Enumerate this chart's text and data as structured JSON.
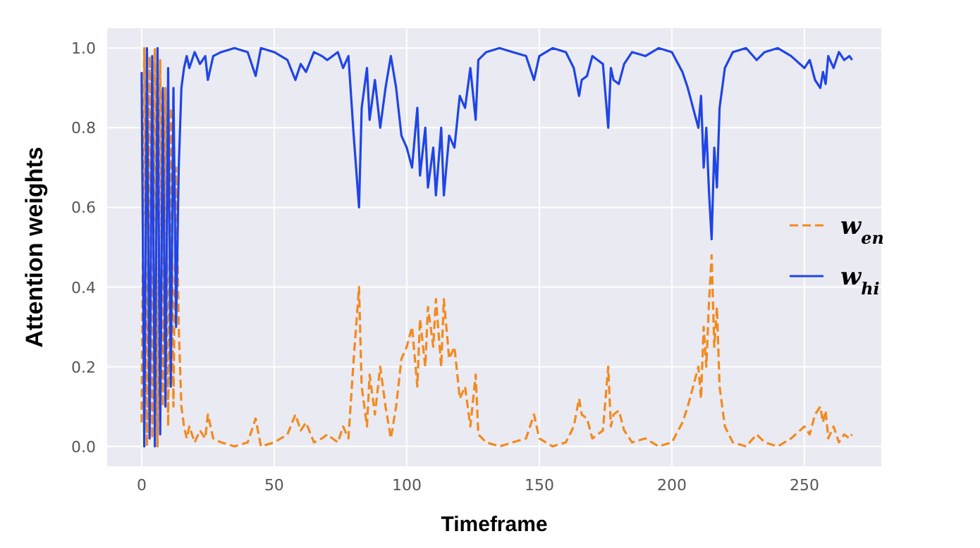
{
  "chart_data": {
    "type": "line",
    "xlabel": "Timeframe",
    "ylabel": "Attention weights",
    "x": [
      0,
      1,
      2,
      3,
      4,
      5,
      6,
      7,
      8,
      9,
      10,
      11,
      12,
      13,
      14,
      15,
      16,
      17,
      18,
      20,
      22,
      24,
      25,
      27,
      30,
      35,
      40,
      43,
      45,
      50,
      55,
      58,
      60,
      62,
      65,
      68,
      70,
      74,
      76,
      78,
      80,
      82,
      83,
      84,
      85,
      86,
      88,
      90,
      92,
      94,
      96,
      98,
      100,
      102,
      104,
      105,
      107,
      108,
      110,
      111,
      113,
      114,
      116,
      118,
      120,
      122,
      124,
      126,
      127,
      130,
      135,
      140,
      145,
      148,
      150,
      155,
      160,
      163,
      165,
      166,
      168,
      170,
      172,
      174,
      176,
      177,
      178,
      180,
      182,
      185,
      190,
      195,
      200,
      204,
      206,
      208,
      210,
      211,
      212,
      213,
      214,
      215,
      216,
      217,
      218,
      220,
      223,
      228,
      232,
      235,
      240,
      245,
      250,
      252,
      254,
      256,
      257,
      258,
      259,
      261,
      263,
      265,
      267,
      268
    ],
    "series": [
      {
        "name": "w$_{en}$",
        "color": "#f28a1e",
        "line_style": "dashed",
        "values": [
          0.06,
          1.0,
          0.0,
          0.98,
          0.02,
          1.0,
          0.0,
          0.97,
          0.1,
          0.9,
          0.05,
          0.85,
          0.1,
          0.7,
          0.3,
          0.1,
          0.05,
          0.02,
          0.05,
          0.01,
          0.04,
          0.02,
          0.08,
          0.02,
          0.01,
          0.0,
          0.01,
          0.07,
          0.0,
          0.01,
          0.03,
          0.08,
          0.04,
          0.06,
          0.01,
          0.02,
          0.03,
          0.01,
          0.05,
          0.02,
          0.22,
          0.4,
          0.15,
          0.1,
          0.05,
          0.18,
          0.08,
          0.2,
          0.1,
          0.02,
          0.1,
          0.22,
          0.25,
          0.3,
          0.15,
          0.32,
          0.2,
          0.35,
          0.25,
          0.37,
          0.2,
          0.37,
          0.22,
          0.25,
          0.12,
          0.15,
          0.05,
          0.18,
          0.03,
          0.01,
          0.0,
          0.01,
          0.02,
          0.08,
          0.02,
          0.0,
          0.01,
          0.05,
          0.12,
          0.08,
          0.07,
          0.02,
          0.03,
          0.04,
          0.2,
          0.05,
          0.08,
          0.09,
          0.04,
          0.01,
          0.02,
          0.0,
          0.01,
          0.06,
          0.1,
          0.15,
          0.2,
          0.12,
          0.3,
          0.2,
          0.36,
          0.48,
          0.25,
          0.35,
          0.15,
          0.05,
          0.01,
          0.0,
          0.03,
          0.01,
          0.0,
          0.02,
          0.05,
          0.03,
          0.08,
          0.1,
          0.06,
          0.09,
          0.02,
          0.05,
          0.01,
          0.03,
          0.02,
          0.03
        ]
      },
      {
        "name": "w$_{hi}$",
        "color": "#1f45e6",
        "line_style": "solid",
        "values": [
          0.94,
          0.0,
          1.0,
          0.02,
          0.98,
          0.0,
          1.0,
          0.03,
          0.9,
          0.1,
          0.95,
          0.15,
          0.9,
          0.3,
          0.7,
          0.9,
          0.95,
          0.98,
          0.95,
          0.99,
          0.96,
          0.98,
          0.92,
          0.98,
          0.99,
          1.0,
          0.99,
          0.93,
          1.0,
          0.99,
          0.97,
          0.92,
          0.96,
          0.94,
          0.99,
          0.98,
          0.97,
          0.99,
          0.95,
          0.98,
          0.78,
          0.6,
          0.85,
          0.9,
          0.95,
          0.82,
          0.92,
          0.8,
          0.9,
          0.98,
          0.9,
          0.78,
          0.75,
          0.7,
          0.85,
          0.68,
          0.8,
          0.65,
          0.75,
          0.63,
          0.8,
          0.63,
          0.78,
          0.75,
          0.88,
          0.85,
          0.95,
          0.82,
          0.97,
          0.99,
          1.0,
          0.99,
          0.98,
          0.92,
          0.98,
          1.0,
          0.99,
          0.95,
          0.88,
          0.92,
          0.93,
          0.98,
          0.97,
          0.96,
          0.8,
          0.95,
          0.92,
          0.91,
          0.96,
          0.99,
          0.98,
          1.0,
          0.99,
          0.94,
          0.9,
          0.85,
          0.8,
          0.88,
          0.7,
          0.8,
          0.64,
          0.52,
          0.75,
          0.65,
          0.85,
          0.95,
          0.99,
          1.0,
          0.97,
          0.99,
          1.0,
          0.98,
          0.95,
          0.97,
          0.92,
          0.9,
          0.94,
          0.91,
          0.98,
          0.95,
          0.99,
          0.97,
          0.98,
          0.97
        ]
      }
    ],
    "xlim": [
      -13,
      279
    ],
    "ylim": [
      -0.05,
      1.05
    ],
    "xticks": [
      0,
      50,
      100,
      150,
      200,
      250
    ],
    "yticks": [
      {
        "value": 0,
        "label": "0.0"
      },
      {
        "value": 0.2,
        "label": "0.2"
      },
      {
        "value": 0.4,
        "label": "0.4"
      },
      {
        "value": 0.6,
        "label": "0.6"
      },
      {
        "value": 0.8,
        "label": "0.8"
      },
      {
        "value": 1,
        "label": "1.0"
      }
    ],
    "grid": true,
    "legend": "right"
  }
}
